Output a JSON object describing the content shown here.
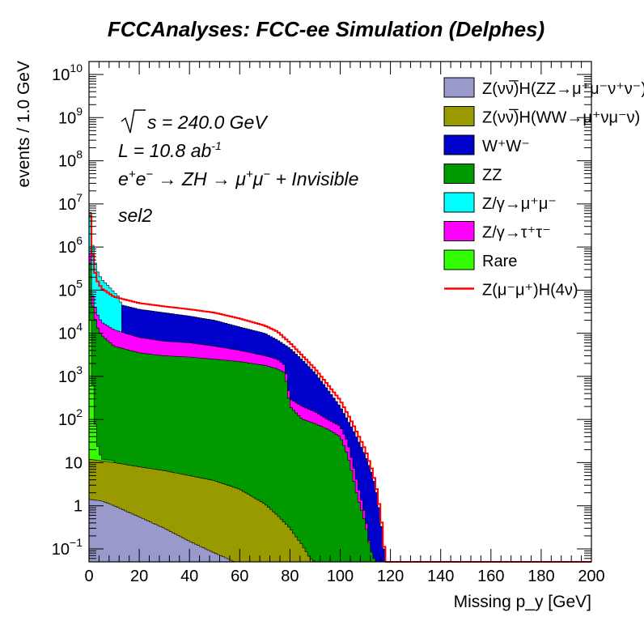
{
  "chart_data": {
    "type": "area",
    "title": "FCCAnalyses: FCC-ee Simulation (Delphes)",
    "xlabel": "Missing p_y [GeV]",
    "ylabel": "events / 1.0 GeV",
    "xlim": [
      0,
      200
    ],
    "ylim": [
      0.05,
      20000000000
    ],
    "yscale": "log",
    "grid": false,
    "stacked": true,
    "legend_position": "top-right",
    "x_ticks": [
      "0",
      "20",
      "40",
      "60",
      "80",
      "100",
      "120",
      "140",
      "160",
      "180",
      "200"
    ],
    "y_ticks": [
      {
        "base": "10",
        "exp": "−1",
        "v": 0.1
      },
      {
        "base": "1",
        "exp": "",
        "v": 1
      },
      {
        "base": "10",
        "exp": "",
        "v": 10
      },
      {
        "base": "10",
        "exp": "2",
        "v": 100
      },
      {
        "base": "10",
        "exp": "3",
        "v": 1000
      },
      {
        "base": "10",
        "exp": "4",
        "v": 10000
      },
      {
        "base": "10",
        "exp": "5",
        "v": 100000
      },
      {
        "base": "10",
        "exp": "6",
        "v": 1000000
      },
      {
        "base": "10",
        "exp": "7",
        "v": 10000000
      },
      {
        "base": "10",
        "exp": "8",
        "v": 100000000
      },
      {
        "base": "10",
        "exp": "9",
        "v": 1000000000
      },
      {
        "base": "10",
        "exp": "10",
        "v": 10000000000
      }
    ],
    "annotations": {
      "sqrt_s": "s = 240.0 GeV",
      "lumi": "L = 10.8 ab",
      "lumi_exp": "-1",
      "process_a": "e",
      "process_b": "e",
      "process_c": " → ZH → μ",
      "process_d": "μ",
      "process_e": " + Invisible",
      "selection": "sel2"
    },
    "series": [
      {
        "name": "Z(νν̅)H(ZZ→μ⁺μ⁻ν⁺ν⁻)",
        "color": "#9999cc",
        "points": [
          [
            0,
            1.4
          ],
          [
            5,
            1.3
          ],
          [
            10,
            1.0
          ],
          [
            20,
            0.55
          ],
          [
            30,
            0.3
          ],
          [
            40,
            0.15
          ],
          [
            50,
            0.08
          ],
          [
            55,
            0.06
          ],
          [
            58,
            0.05
          ]
        ]
      },
      {
        "name": "Z(νν̅)H(WW→μ⁺νμ⁻ν)",
        "color": "#999900",
        "points": [
          [
            0,
            12
          ],
          [
            5,
            11
          ],
          [
            10,
            10
          ],
          [
            20,
            8
          ],
          [
            30,
            6.5
          ],
          [
            40,
            5
          ],
          [
            50,
            3.8
          ],
          [
            60,
            2.4
          ],
          [
            70,
            1.1
          ],
          [
            75,
            0.6
          ],
          [
            80,
            0.3
          ],
          [
            85,
            0.12
          ],
          [
            88,
            0.06
          ],
          [
            90,
            0.05
          ]
        ]
      },
      {
        "name": "W⁺W⁻",
        "color": "#0000cc",
        "points": [
          [
            0,
            12000000
          ],
          [
            1,
            800000
          ],
          [
            2,
            250000
          ],
          [
            3,
            120000
          ],
          [
            5,
            75000
          ],
          [
            10,
            50000
          ],
          [
            20,
            36000
          ],
          [
            30,
            30000
          ],
          [
            40,
            25000
          ],
          [
            50,
            20000
          ],
          [
            60,
            14000
          ],
          [
            70,
            10000
          ],
          [
            75,
            7000
          ],
          [
            80,
            4500
          ],
          [
            85,
            2400
          ],
          [
            90,
            1200
          ],
          [
            95,
            500
          ],
          [
            100,
            200
          ],
          [
            105,
            60
          ],
          [
            110,
            15
          ],
          [
            113,
            5
          ],
          [
            115,
            1.5
          ],
          [
            117,
            0.2
          ],
          [
            118,
            0.05
          ]
        ]
      },
      {
        "name": "ZZ",
        "color": "#009900",
        "points": [
          [
            0,
            3000000
          ],
          [
            1,
            60000
          ],
          [
            3,
            15000
          ],
          [
            5,
            9000
          ],
          [
            10,
            5000
          ],
          [
            20,
            3500
          ],
          [
            30,
            3000
          ],
          [
            40,
            2800
          ],
          [
            50,
            2500
          ],
          [
            60,
            2200
          ],
          [
            70,
            1800
          ],
          [
            75,
            1500
          ],
          [
            78,
            1200
          ],
          [
            80,
            200
          ],
          [
            85,
            100
          ],
          [
            90,
            80
          ],
          [
            95,
            60
          ],
          [
            100,
            40
          ],
          [
            103,
            15
          ],
          [
            105,
            5
          ],
          [
            107,
            1.5
          ],
          [
            110,
            0.4
          ],
          [
            112,
            0.1
          ],
          [
            114,
            0.05
          ]
        ]
      },
      {
        "name": "Z/γ→μ⁺μ⁻",
        "color": "#00ffff",
        "points": [
          [
            0,
            20000000
          ],
          [
            1,
            2000000
          ],
          [
            2,
            600000
          ],
          [
            3,
            300000
          ],
          [
            5,
            180000
          ],
          [
            8,
            120000
          ],
          [
            10,
            90000
          ],
          [
            12,
            70000
          ],
          [
            13,
            40000
          ]
        ]
      },
      {
        "name": "Z/γ→τ⁺τ⁻",
        "color": "#ff00ff",
        "points": [
          [
            0,
            5000000
          ],
          [
            1,
            100000
          ],
          [
            3,
            30000
          ],
          [
            5,
            18000
          ],
          [
            10,
            12000
          ],
          [
            20,
            8000
          ],
          [
            30,
            6500
          ],
          [
            40,
            6000
          ],
          [
            50,
            5000
          ],
          [
            60,
            4000
          ],
          [
            70,
            3000
          ],
          [
            75,
            2500
          ],
          [
            78,
            1800
          ],
          [
            80,
            300
          ],
          [
            85,
            200
          ],
          [
            90,
            150
          ],
          [
            95,
            100
          ],
          [
            100,
            70
          ],
          [
            103,
            30
          ],
          [
            105,
            10
          ],
          [
            107,
            3
          ],
          [
            110,
            0.6
          ],
          [
            112,
            0.1
          ],
          [
            113,
            0.05
          ]
        ]
      },
      {
        "name": "Rare",
        "color": "#33ff00",
        "points": [
          [
            0,
            200000
          ],
          [
            1,
            2000
          ],
          [
            2,
            200
          ],
          [
            3,
            30
          ],
          [
            5,
            12
          ],
          [
            10,
            11
          ]
        ]
      },
      {
        "name": "Z(μ⁻μ⁺)H(4ν)",
        "color": "#ff0000",
        "style": "line",
        "points": [
          [
            0,
            24000000
          ],
          [
            1,
            1200000
          ],
          [
            2,
            350000
          ],
          [
            3,
            180000
          ],
          [
            5,
            110000
          ],
          [
            10,
            70000
          ],
          [
            20,
            50000
          ],
          [
            30,
            42000
          ],
          [
            40,
            36000
          ],
          [
            50,
            30000
          ],
          [
            60,
            22000
          ],
          [
            70,
            15000
          ],
          [
            75,
            11000
          ],
          [
            80,
            6000
          ],
          [
            85,
            3000
          ],
          [
            90,
            1500
          ],
          [
            95,
            650
          ],
          [
            100,
            280
          ],
          [
            105,
            80
          ],
          [
            110,
            20
          ],
          [
            113,
            6
          ],
          [
            115,
            1.8
          ],
          [
            117,
            0.25
          ],
          [
            118,
            0.05
          ],
          [
            200,
            0.05
          ]
        ]
      }
    ]
  }
}
